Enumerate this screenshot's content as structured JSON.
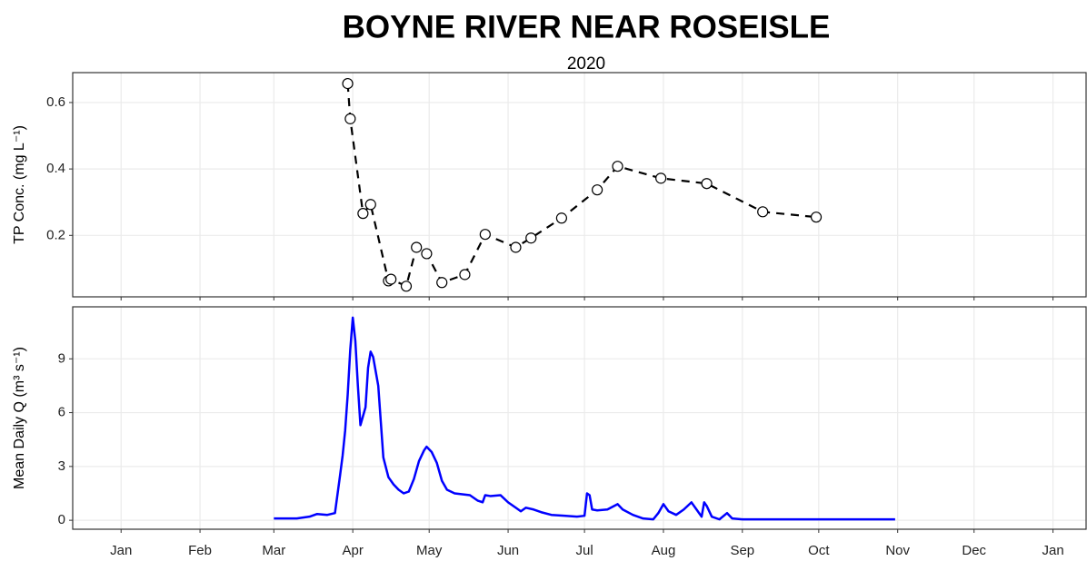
{
  "title": "BOYNE RIVER NEAR ROSEISLE",
  "subtitle": "2020",
  "chart_data": [
    {
      "type": "line",
      "ylabel": "TP Conc. (mg L⁻¹)",
      "color": "#000000",
      "dashed": true,
      "markers": true,
      "grid": true,
      "x": [
        90,
        91,
        96,
        99,
        106,
        107,
        113,
        117,
        121,
        127,
        136,
        144,
        156,
        162,
        174,
        188,
        196,
        213,
        231,
        253,
        274
      ],
      "values": [
        0.657,
        0.551,
        0.266,
        0.293,
        0.063,
        0.068,
        0.047,
        0.164,
        0.145,
        0.058,
        0.082,
        0.203,
        0.164,
        0.192,
        0.252,
        0.337,
        0.408,
        0.372,
        0.356,
        0.271,
        0.255
      ],
      "xlim": [
        -18,
        380
      ],
      "ylim": [
        0.015,
        0.69
      ],
      "yticks": [
        0.2,
        0.4,
        0.6
      ]
    },
    {
      "type": "line",
      "ylabel": "Mean Daily Q (m³ s⁻¹)",
      "color": "#0000ff",
      "dashed": false,
      "markers": false,
      "grid": true,
      "x": [
        61,
        70,
        75,
        78,
        82,
        85,
        87,
        88,
        89,
        90,
        91,
        92,
        93,
        94,
        95,
        96,
        97,
        98,
        99,
        100,
        101,
        102,
        103,
        104,
        106,
        108,
        110,
        112,
        114,
        116,
        118,
        120,
        121,
        123,
        125,
        127,
        129,
        132,
        135,
        138,
        141,
        143,
        144,
        146,
        150,
        153,
        156,
        158,
        160,
        163,
        166,
        170,
        175,
        180,
        183,
        184,
        185,
        186,
        188,
        192,
        196,
        198,
        202,
        206,
        210,
        212,
        214,
        216,
        219,
        222,
        225,
        227,
        229,
        230,
        231,
        233,
        236,
        239,
        241,
        245,
        255,
        270,
        290,
        305
      ],
      "values": [
        0.1,
        0.1,
        0.2,
        0.35,
        0.3,
        0.4,
        2.5,
        3.6,
        5,
        7,
        9.5,
        11.3,
        10,
        7.5,
        5.3,
        5.8,
        6.3,
        8.5,
        9.4,
        9.1,
        8.3,
        7.5,
        5.5,
        3.5,
        2.4,
        2.0,
        1.7,
        1.5,
        1.6,
        2.3,
        3.3,
        3.9,
        4.1,
        3.8,
        3.2,
        2.2,
        1.7,
        1.5,
        1.45,
        1.4,
        1.1,
        1.0,
        1.4,
        1.35,
        1.4,
        1.0,
        0.7,
        0.5,
        0.7,
        0.6,
        0.45,
        0.3,
        0.25,
        0.2,
        0.25,
        1.5,
        1.4,
        0.6,
        0.55,
        0.6,
        0.9,
        0.6,
        0.3,
        0.1,
        0.05,
        0.4,
        0.9,
        0.5,
        0.3,
        0.6,
        1.0,
        0.6,
        0.2,
        1.0,
        0.8,
        0.2,
        0.05,
        0.4,
        0.1,
        0.05,
        0.05,
        0.05,
        0.05,
        0.05
      ],
      "xlim": [
        -18,
        380
      ],
      "ylim": [
        -0.5,
        11.9
      ],
      "yticks": [
        0,
        3,
        6,
        9
      ],
      "xticks": [
        {
          "value": 1,
          "label": "Jan"
        },
        {
          "value": 32,
          "label": "Feb"
        },
        {
          "value": 61,
          "label": "Mar"
        },
        {
          "value": 92,
          "label": "Apr"
        },
        {
          "value": 122,
          "label": "May"
        },
        {
          "value": 153,
          "label": "Jun"
        },
        {
          "value": 183,
          "label": "Jul"
        },
        {
          "value": 214,
          "label": "Aug"
        },
        {
          "value": 245,
          "label": "Sep"
        },
        {
          "value": 275,
          "label": "Oct"
        },
        {
          "value": 306,
          "label": "Nov"
        },
        {
          "value": 336,
          "label": "Dec"
        },
        {
          "value": 367,
          "label": "Jan"
        }
      ]
    }
  ]
}
